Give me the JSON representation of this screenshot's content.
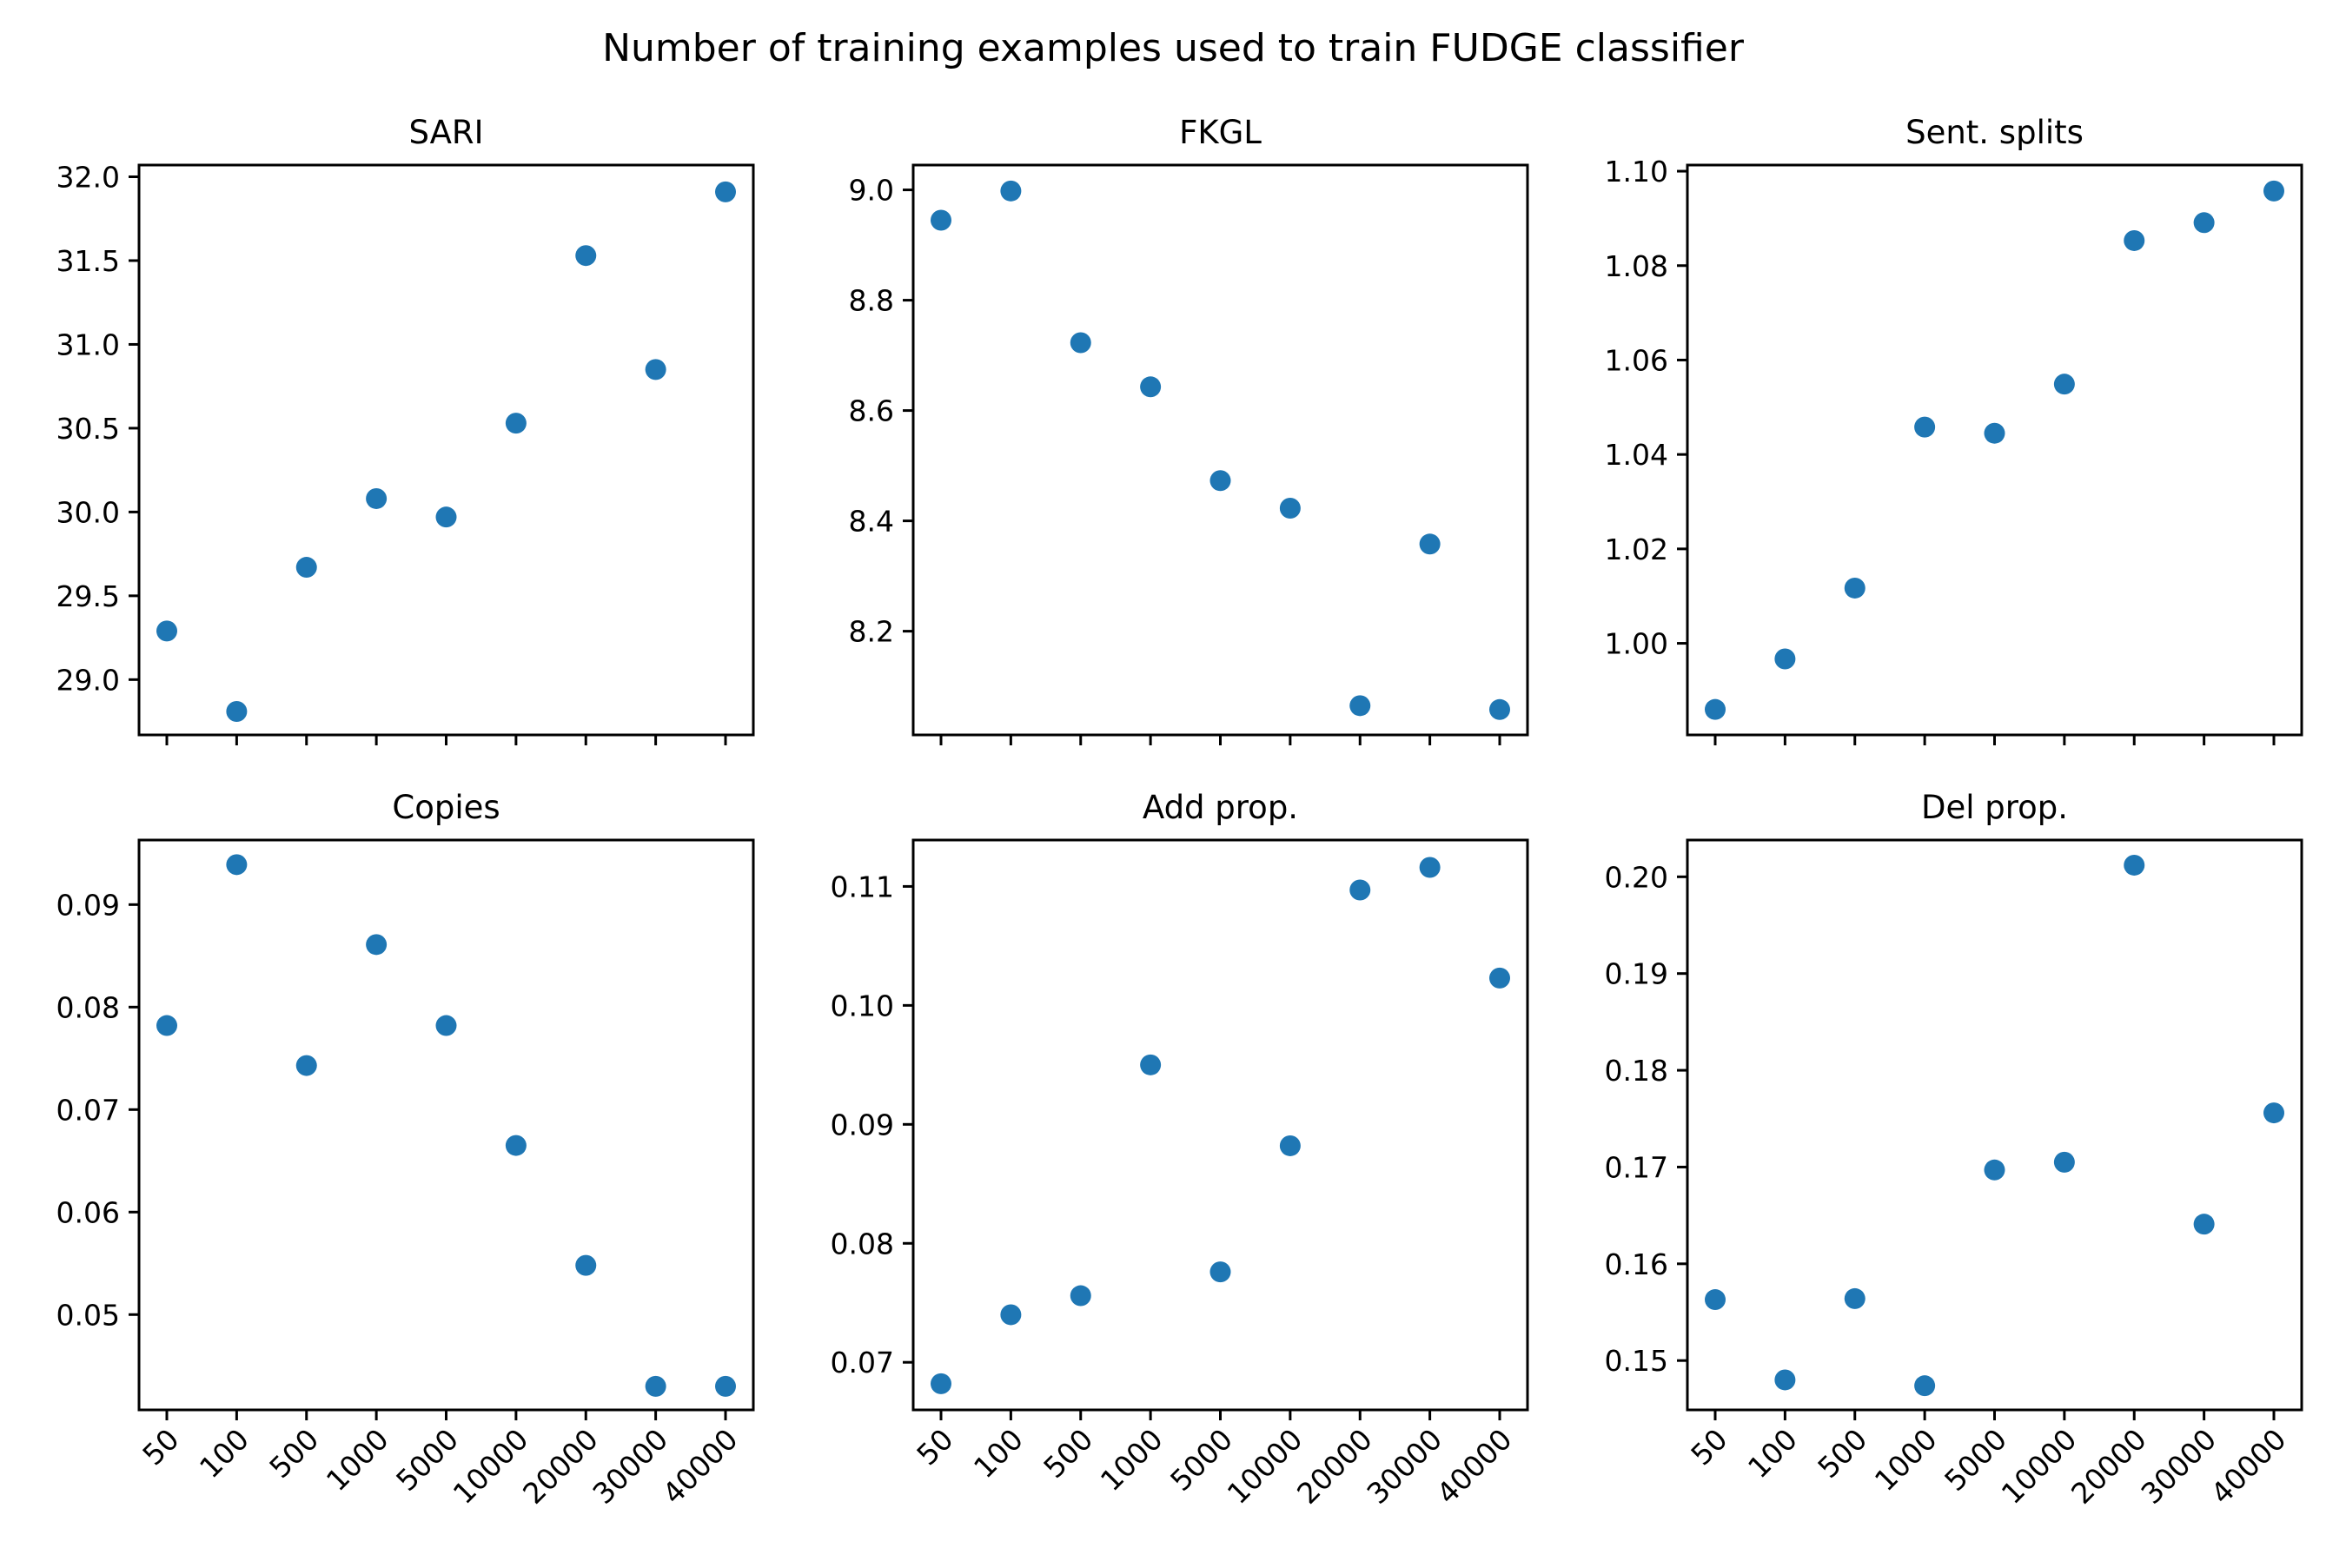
{
  "figure": {
    "title": "Number of training examples used to train FUDGE classifier"
  },
  "chart_data": [
    {
      "type": "scatter",
      "title": "SARI",
      "xlabel": "",
      "ylabel": "",
      "categories": [
        "50",
        "100",
        "500",
        "1000",
        "5000",
        "10000",
        "20000",
        "30000",
        "40000"
      ],
      "values": [
        29.29,
        28.81,
        29.67,
        30.08,
        29.97,
        30.53,
        31.53,
        30.85,
        31.91
      ],
      "ylim": [
        28.67,
        32.07
      ],
      "yticks": [
        29.0,
        29.5,
        30.0,
        30.5,
        31.0,
        31.5,
        32.0
      ],
      "ytick_labels": [
        "29.0",
        "29.5",
        "30.0",
        "30.5",
        "31.0",
        "31.5",
        "32.0"
      ],
      "color": "#1f77b4"
    },
    {
      "type": "scatter",
      "title": "FKGL",
      "xlabel": "",
      "ylabel": "",
      "categories": [
        "50",
        "100",
        "500",
        "1000",
        "5000",
        "10000",
        "20000",
        "30000",
        "40000"
      ],
      "values": [
        8.945,
        8.998,
        8.723,
        8.643,
        8.473,
        8.423,
        8.065,
        8.358,
        8.058
      ],
      "ylim": [
        8.012,
        9.045
      ],
      "yticks": [
        8.2,
        8.4,
        8.6,
        8.8,
        9.0
      ],
      "ytick_labels": [
        "8.2",
        "8.4",
        "8.6",
        "8.8",
        "9.0"
      ],
      "color": "#1f77b4"
    },
    {
      "type": "scatter",
      "title": "Sent. splits",
      "xlabel": "",
      "ylabel": "",
      "categories": [
        "50",
        "100",
        "500",
        "1000",
        "5000",
        "10000",
        "20000",
        "30000",
        "40000"
      ],
      "values": [
        0.986,
        0.9967,
        1.0117,
        1.0458,
        1.0445,
        1.0549,
        1.0853,
        1.0891,
        1.0958
      ],
      "ylim": [
        0.9806,
        1.1013
      ],
      "yticks": [
        1.0,
        1.02,
        1.04,
        1.06,
        1.08,
        1.1
      ],
      "ytick_labels": [
        "1.00",
        "1.02",
        "1.04",
        "1.06",
        "1.08",
        "1.10"
      ],
      "color": "#1f77b4"
    },
    {
      "type": "scatter",
      "title": "Copies",
      "xlabel": "",
      "ylabel": "",
      "categories": [
        "50",
        "100",
        "500",
        "1000",
        "5000",
        "10000",
        "20000",
        "30000",
        "40000"
      ],
      "values": [
        0.0782,
        0.0939,
        0.0743,
        0.0861,
        0.0782,
        0.0665,
        0.0548,
        0.043,
        0.043
      ],
      "ylim": [
        0.0407,
        0.0963
      ],
      "yticks": [
        0.05,
        0.06,
        0.07,
        0.08,
        0.09
      ],
      "ytick_labels": [
        "0.05",
        "0.06",
        "0.07",
        "0.08",
        "0.09"
      ],
      "color": "#1f77b4"
    },
    {
      "type": "scatter",
      "title": "Add prop.",
      "xlabel": "",
      "ylabel": "",
      "categories": [
        "50",
        "100",
        "500",
        "1000",
        "5000",
        "10000",
        "20000",
        "30000",
        "40000"
      ],
      "values": [
        0.0682,
        0.074,
        0.0756,
        0.095,
        0.0776,
        0.0882,
        0.1097,
        0.1116,
        0.1023
      ],
      "ylim": [
        0.066,
        0.1139
      ],
      "yticks": [
        0.07,
        0.08,
        0.09,
        0.1,
        0.11
      ],
      "ytick_labels": [
        "0.07",
        "0.08",
        "0.09",
        "0.10",
        "0.11"
      ],
      "color": "#1f77b4"
    },
    {
      "type": "scatter",
      "title": "Del prop.",
      "xlabel": "",
      "ylabel": "",
      "categories": [
        "50",
        "100",
        "500",
        "1000",
        "5000",
        "10000",
        "20000",
        "30000",
        "40000"
      ],
      "values": [
        0.1563,
        0.148,
        0.1564,
        0.1474,
        0.1697,
        0.1705,
        0.2012,
        0.1641,
        0.1756
      ],
      "ylim": [
        0.1449,
        0.2038
      ],
      "yticks": [
        0.15,
        0.16,
        0.17,
        0.18,
        0.19,
        0.2
      ],
      "ytick_labels": [
        "0.15",
        "0.16",
        "0.17",
        "0.18",
        "0.19",
        "0.20"
      ],
      "color": "#1f77b4"
    }
  ]
}
